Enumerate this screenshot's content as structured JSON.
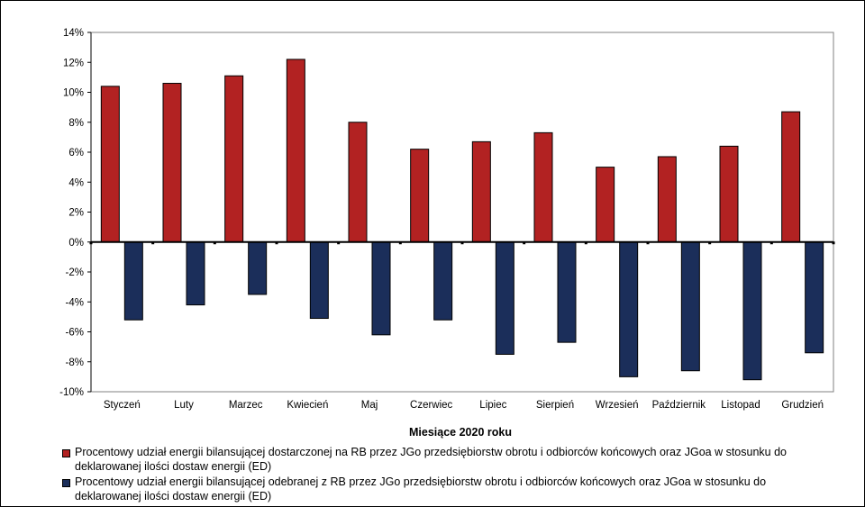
{
  "chart_data": {
    "type": "bar",
    "xlabel": "Miesiące 2020  roku",
    "ylabel": "",
    "ylim": [
      -10,
      14
    ],
    "yticks": [
      "14%",
      "12%",
      "10%",
      "8%",
      "6%",
      "4%",
      "2%",
      "0%",
      "-2%",
      "-4%",
      "-6%",
      "-8%",
      "-10%"
    ],
    "ytick_values": [
      14,
      12,
      10,
      8,
      6,
      4,
      2,
      0,
      -2,
      -4,
      -6,
      -8,
      -10
    ],
    "grid": false,
    "legend_position": "bottom",
    "categories": [
      "Styczeń",
      "Luty",
      "Marzec",
      "Kwiecień",
      "Maj",
      "Czerwiec",
      "Lipiec",
      "Sierpień",
      "Wrzesień",
      "Październik",
      "Listopad",
      "Grudzień"
    ],
    "series": [
      {
        "name": "Procentowy udział energii bilansującej dostarczonej na RB przez JGo przedsiębiorstw obrotu i odbiorców końcowych oraz JGoa w stosunku do deklarowanej ilości dostaw energii (ED)",
        "color": "#B22222",
        "values": [
          10.4,
          10.6,
          11.1,
          12.2,
          8.0,
          6.2,
          6.7,
          7.3,
          5.0,
          5.7,
          6.4,
          8.7
        ]
      },
      {
        "name": "Procentowy udział energii bilansującej odebranej z RB przez JGo przedsiębiorstw obrotu i odbiorców końcowych oraz JGoa w stosunku do deklarowanej ilości dostaw energii (ED)",
        "color": "#1B2E5A",
        "values": [
          -5.2,
          -4.2,
          -3.5,
          -5.1,
          -6.2,
          -5.2,
          -7.5,
          -6.7,
          -9.0,
          -8.6,
          -9.2,
          -7.4
        ]
      }
    ]
  }
}
